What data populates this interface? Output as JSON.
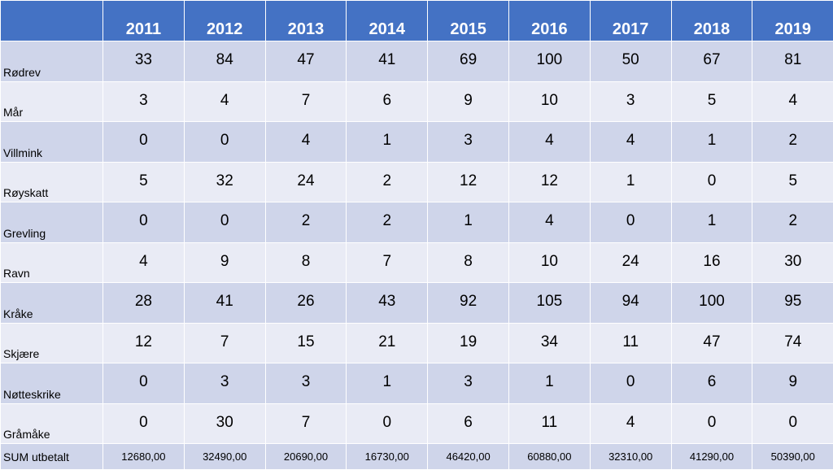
{
  "chart_data": {
    "type": "table",
    "columns": [
      "2011",
      "2012",
      "2013",
      "2014",
      "2015",
      "2016",
      "2017",
      "2018",
      "2019"
    ],
    "rows": [
      {
        "label": "Rødrev",
        "values": [
          "33",
          "84",
          "47",
          "41",
          "69",
          "100",
          "50",
          "67",
          "81"
        ]
      },
      {
        "label": "Mår",
        "values": [
          "3",
          "4",
          "7",
          "6",
          "9",
          "10",
          "3",
          "5",
          "4"
        ]
      },
      {
        "label": "Villmink",
        "values": [
          "0",
          "0",
          "4",
          "1",
          "3",
          "4",
          "4",
          "1",
          "2"
        ]
      },
      {
        "label": "Røyskatt",
        "values": [
          "5",
          "32",
          "24",
          "2",
          "12",
          "12",
          "1",
          "0",
          "5"
        ]
      },
      {
        "label": "Grevling",
        "values": [
          "0",
          "0",
          "2",
          "2",
          "1",
          "4",
          "0",
          "1",
          "2"
        ]
      },
      {
        "label": "Ravn",
        "values": [
          "4",
          "9",
          "8",
          "7",
          "8",
          "10",
          "24",
          "16",
          "30"
        ]
      },
      {
        "label": "Kråke",
        "values": [
          "28",
          "41",
          "26",
          "43",
          "92",
          "105",
          "94",
          "100",
          "95"
        ]
      },
      {
        "label": "Skjære",
        "values": [
          "12",
          "7",
          "15",
          "21",
          "19",
          "34",
          "11",
          "47",
          "74"
        ]
      },
      {
        "label": "Nøtteskrike",
        "values": [
          "0",
          "3",
          "3",
          "1",
          "3",
          "1",
          "0",
          "6",
          "9"
        ]
      },
      {
        "label": "Gråmåke",
        "values": [
          "0",
          "30",
          "7",
          "0",
          "6",
          "11",
          "4",
          "0",
          "0"
        ]
      }
    ],
    "total_row": {
      "label": "SUM utbetalt",
      "values": [
        "12680,00",
        "32490,00",
        "20690,00",
        "16730,00",
        "46420,00",
        "60880,00",
        "32310,00",
        "41290,00",
        "50390,00"
      ]
    }
  },
  "colors": {
    "header_bg": "#4472c4",
    "row_dark": "#cfd5ea",
    "row_light": "#e9ebf5"
  }
}
